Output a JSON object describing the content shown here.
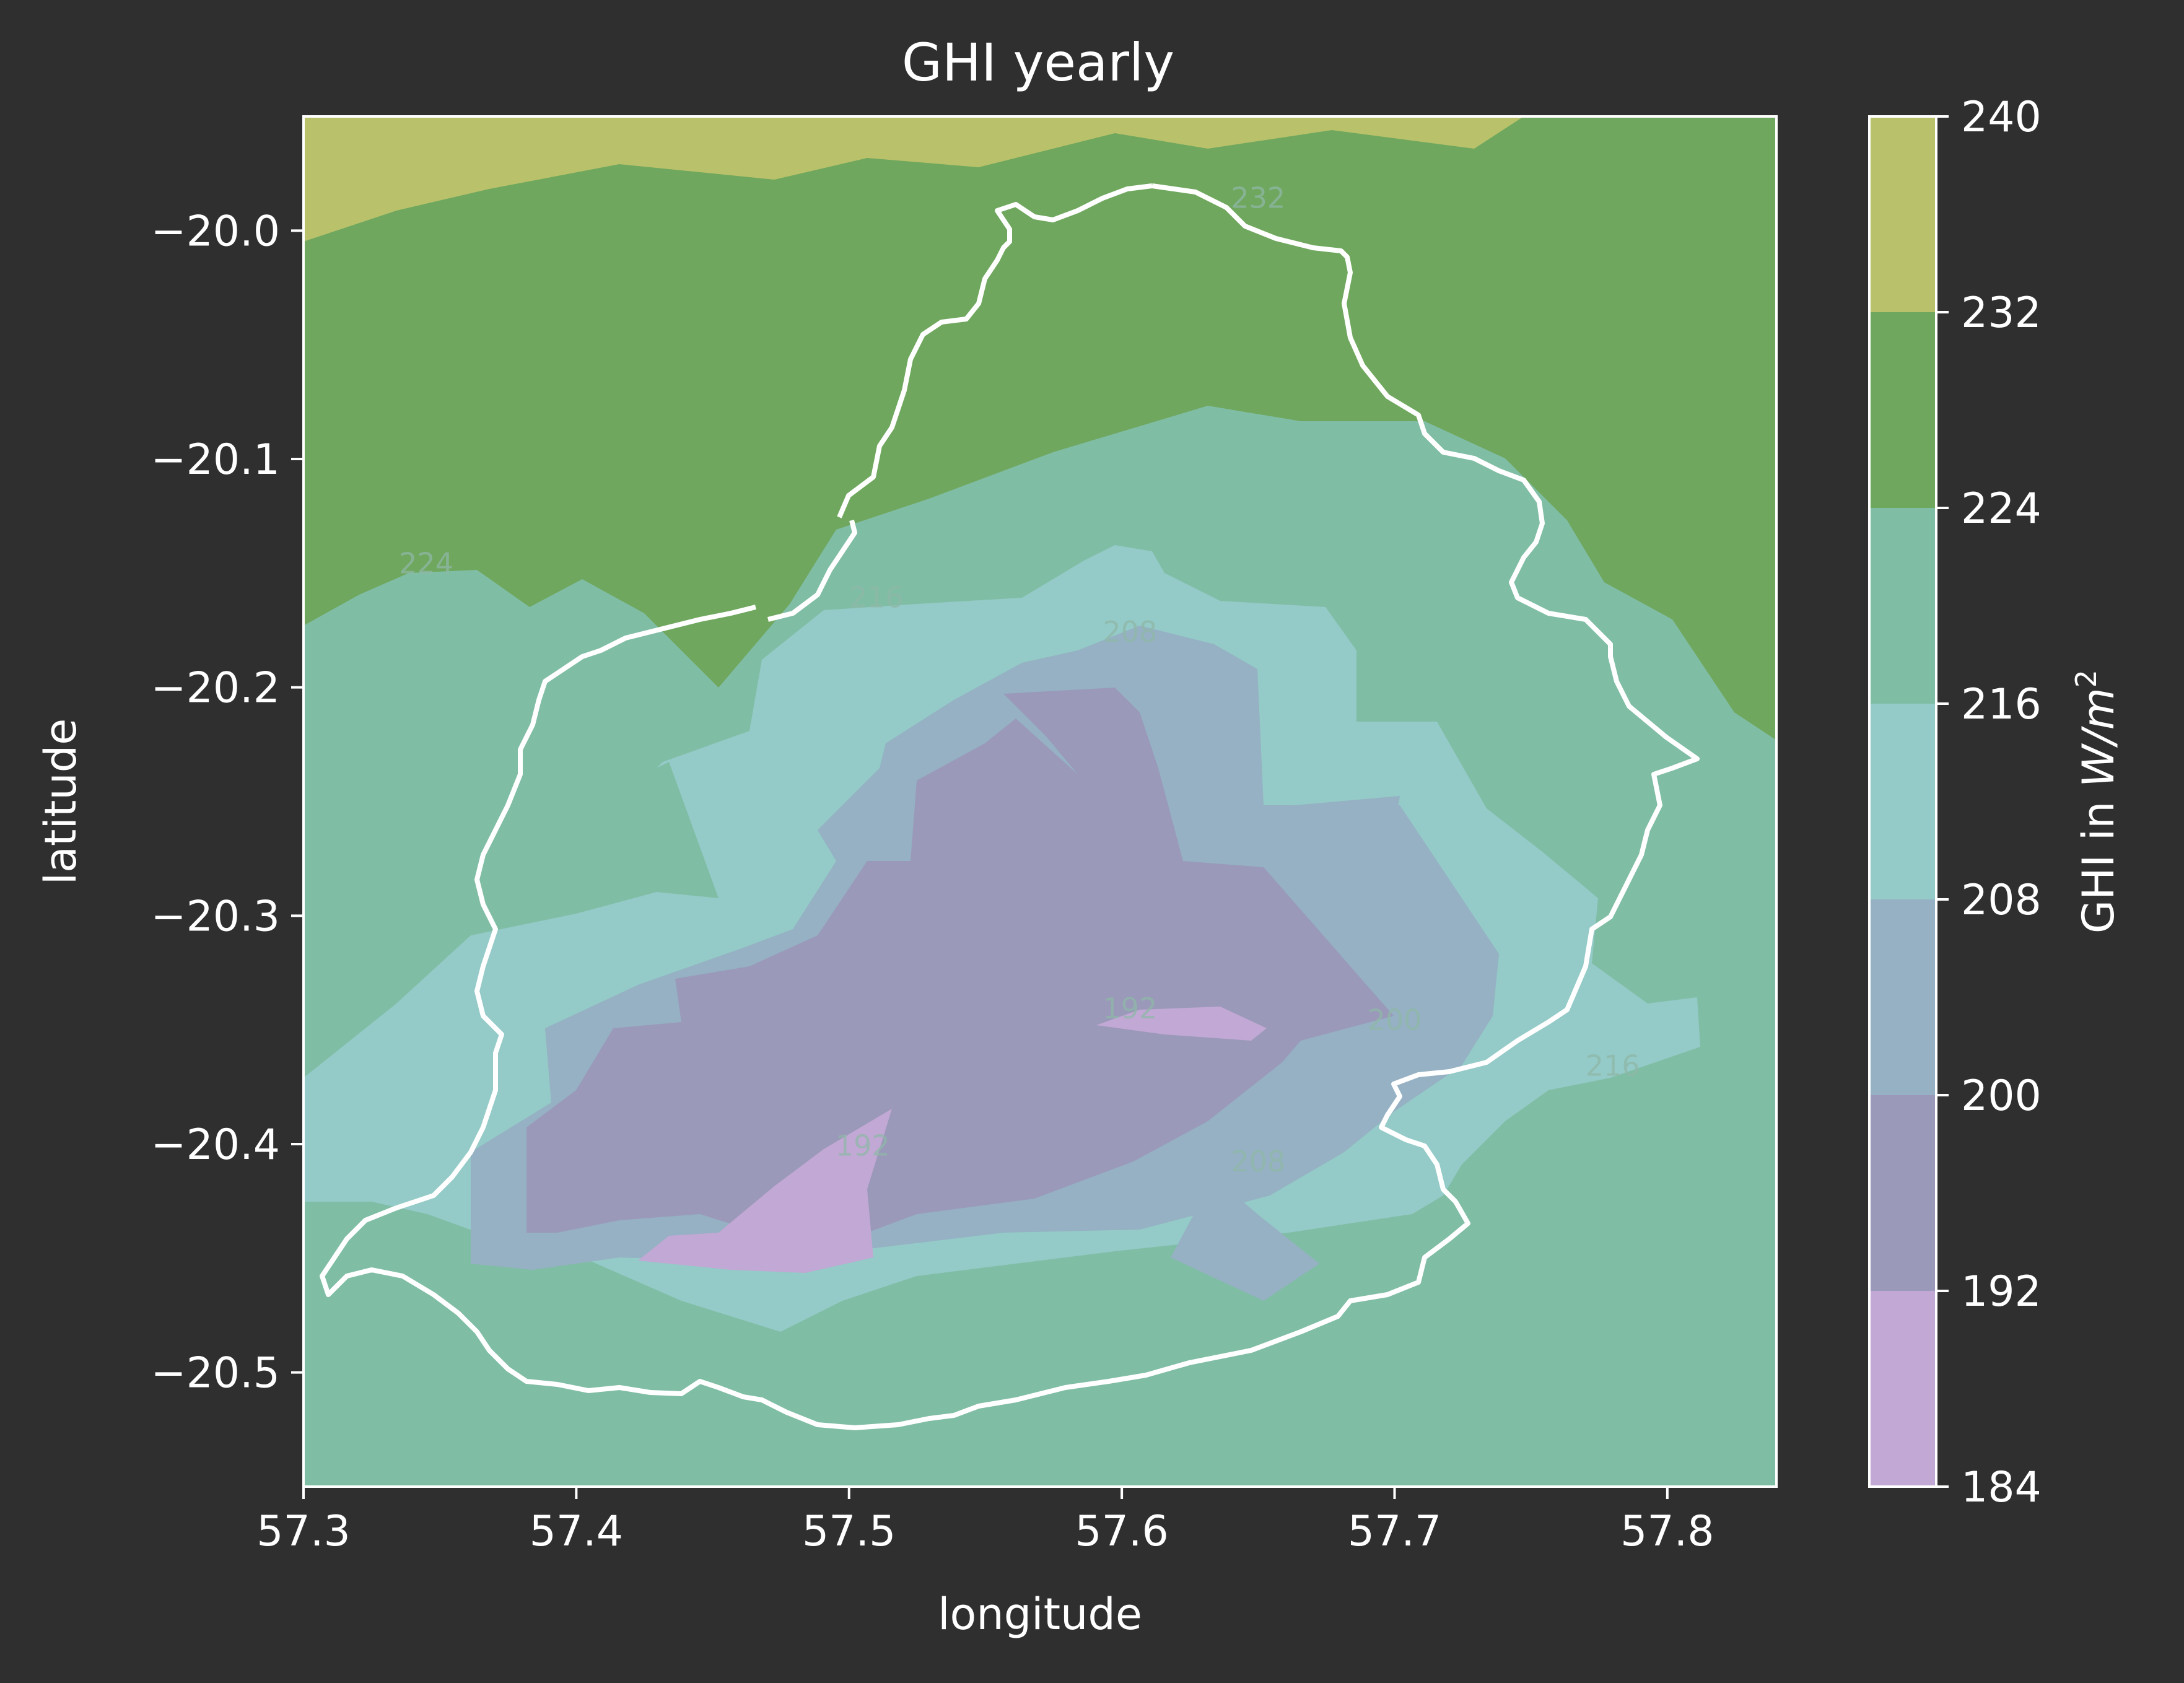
{
  "chart_data": {
    "type": "heatmap",
    "title": "GHI yearly",
    "xlabel": "longitude",
    "ylabel": "latitude",
    "xlim": [
      57.3,
      57.84
    ],
    "ylim": [
      -20.55,
      -19.95
    ],
    "xticks": [
      "57.3",
      "57.4",
      "57.5",
      "57.6",
      "57.7",
      "57.8"
    ],
    "yticks": [
      "−20.0",
      "−20.1",
      "−20.2",
      "−20.3",
      "−20.4",
      "−20.5"
    ],
    "colorbar": {
      "label": "GHI in W/m²",
      "label_main": "GHI in ",
      "label_unit": "W/m",
      "label_exp": "2",
      "levels": [
        184,
        192,
        200,
        208,
        216,
        224,
        232,
        240
      ],
      "tick_labels": [
        "184",
        "192",
        "200",
        "208",
        "216",
        "224",
        "232",
        "240"
      ],
      "colors": [
        "#c2a8d4",
        "#9a99b9",
        "#95b1c3",
        "#94cac7",
        "#80bda5",
        "#6fa75e",
        "#b9c26a"
      ]
    },
    "contour_labels": [
      {
        "text": "232",
        "x": 57.65,
        "y": -19.99
      },
      {
        "text": "224",
        "x": 57.345,
        "y": -20.15
      },
      {
        "text": "216",
        "x": 57.51,
        "y": -20.165
      },
      {
        "text": "208",
        "x": 57.603,
        "y": -20.18
      },
      {
        "text": "192",
        "x": 57.603,
        "y": -20.345
      },
      {
        "text": "200",
        "x": 57.7,
        "y": -20.35
      },
      {
        "text": "216",
        "x": 57.78,
        "y": -20.37
      },
      {
        "text": "192",
        "x": 57.505,
        "y": -20.405
      },
      {
        "text": "208",
        "x": 57.65,
        "y": -20.412
      }
    ],
    "grid": false
  }
}
